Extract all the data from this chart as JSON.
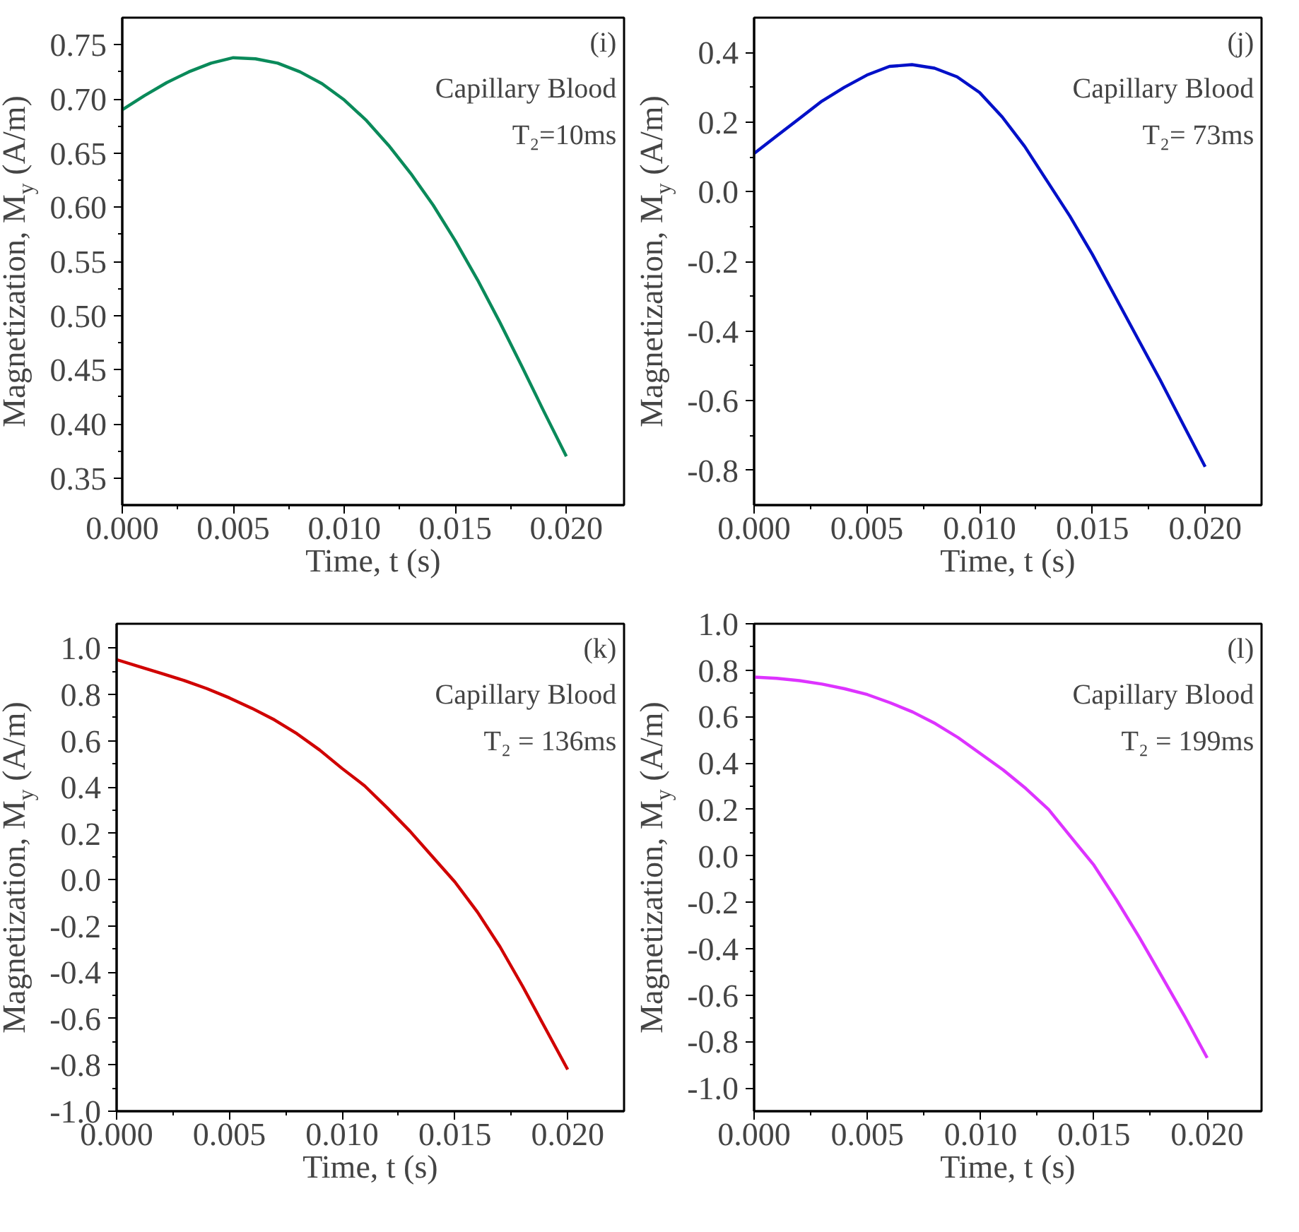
{
  "chart_data": [
    {
      "type": "line",
      "xlabel": "Time, t (s)",
      "ylabel": "Magnetization, M$_{y}$ (A/m)",
      "annotations": [
        "(i)",
        "Capillary Blood",
        "T₂=10ms"
      ],
      "x": [
        0,
        0.001,
        0.002,
        0.003,
        0.004,
        0.005,
        0.006,
        0.007,
        0.008,
        0.009,
        0.01,
        0.011,
        0.012,
        0.013,
        0.014,
        0.015,
        0.016,
        0.017,
        0.018,
        0.019,
        0.02
      ],
      "series": [
        {
          "color": "#0a8a5a",
          "values": [
            0.69,
            0.703,
            0.715,
            0.725,
            0.733,
            0.738,
            0.737,
            0.733,
            0.725,
            0.714,
            0.699,
            0.68,
            0.657,
            0.631,
            0.602,
            0.569,
            0.533,
            0.494,
            0.453,
            0.411,
            0.37
          ]
        }
      ],
      "xlim": [
        0,
        0.0226
      ],
      "ylim": [
        0.325,
        0.775
      ],
      "xticks": [
        {
          "value": 0,
          "label": "0.000"
        },
        {
          "value": 0.005,
          "label": "0.005"
        },
        {
          "value": 0.01,
          "label": "0.010"
        },
        {
          "value": 0.015,
          "label": "0.015"
        },
        {
          "value": 0.02,
          "label": "0.020"
        }
      ],
      "yticks": [
        {
          "value": 0.35,
          "label": "0.35"
        },
        {
          "value": 0.4,
          "label": "0.40"
        },
        {
          "value": 0.45,
          "label": "0.45"
        },
        {
          "value": 0.5,
          "label": "0.50"
        },
        {
          "value": 0.55,
          "label": "0.55"
        },
        {
          "value": 0.6,
          "label": "0.60"
        },
        {
          "value": 0.65,
          "label": "0.65"
        },
        {
          "value": 0.7,
          "label": "0.70"
        },
        {
          "value": 0.75,
          "label": "0.75"
        }
      ],
      "marker": "none",
      "line_style": "solid",
      "grid": false
    },
    {
      "type": "line",
      "xlabel": "Time, t (s)",
      "ylabel": "Magnetization, M$_{y}$ (A/m)",
      "annotations": [
        "(j)",
        "Capillary Blood",
        "T₂= 73ms"
      ],
      "x": [
        0,
        0.001,
        0.002,
        0.003,
        0.004,
        0.005,
        0.006,
        0.007,
        0.008,
        0.009,
        0.01,
        0.011,
        0.012,
        0.013,
        0.014,
        0.015,
        0.016,
        0.017,
        0.018,
        0.019,
        0.02
      ],
      "series": [
        {
          "color": "#0010c8",
          "values": [
            0.11,
            0.16,
            0.21,
            0.26,
            0.3,
            0.335,
            0.36,
            0.365,
            0.355,
            0.33,
            0.285,
            0.215,
            0.13,
            0.03,
            -0.07,
            -0.18,
            -0.3,
            -0.42,
            -0.54,
            -0.665,
            -0.79
          ]
        }
      ],
      "xlim": [
        0,
        0.0225
      ],
      "ylim": [
        -0.9,
        0.5
      ],
      "xticks": [
        {
          "value": 0,
          "label": "0.000"
        },
        {
          "value": 0.005,
          "label": "0.005"
        },
        {
          "value": 0.01,
          "label": "0.010"
        },
        {
          "value": 0.015,
          "label": "0.015"
        },
        {
          "value": 0.02,
          "label": "0.020"
        }
      ],
      "yticks": [
        {
          "value": -0.8,
          "label": "-0.8"
        },
        {
          "value": -0.6,
          "label": "-0.6"
        },
        {
          "value": -0.4,
          "label": "-0.4"
        },
        {
          "value": -0.2,
          "label": "-0.2"
        },
        {
          "value": 0,
          "label": "0.0"
        },
        {
          "value": 0.2,
          "label": "0.2"
        },
        {
          "value": 0.4,
          "label": "0.4"
        }
      ],
      "marker": "none",
      "line_style": "solid",
      "grid": false
    },
    {
      "type": "line",
      "xlabel": "Time, t (s)",
      "ylabel": "Magnetization, M$_{y}$ (A/m)",
      "annotations": [
        "(k)",
        "Capillary Blood",
        "T₂ = 136ms"
      ],
      "x": [
        0,
        0.001,
        0.002,
        0.003,
        0.004,
        0.005,
        0.006,
        0.007,
        0.008,
        0.009,
        0.01,
        0.011,
        0.012,
        0.013,
        0.014,
        0.015,
        0.016,
        0.017,
        0.018,
        0.019,
        0.02
      ],
      "series": [
        {
          "color": "#d00000",
          "values": [
            0.95,
            0.92,
            0.89,
            0.86,
            0.825,
            0.785,
            0.74,
            0.69,
            0.63,
            0.56,
            0.48,
            0.405,
            0.31,
            0.21,
            0.1,
            -0.01,
            -0.14,
            -0.29,
            -0.46,
            -0.64,
            -0.82
          ]
        }
      ],
      "xlim": [
        0,
        0.0225
      ],
      "ylim": [
        -1.0,
        1.105
      ],
      "xticks": [
        {
          "value": 0,
          "label": "0.000"
        },
        {
          "value": 0.005,
          "label": "0.005"
        },
        {
          "value": 0.01,
          "label": "0.010"
        },
        {
          "value": 0.015,
          "label": "0.015"
        },
        {
          "value": 0.02,
          "label": "0.020"
        }
      ],
      "yticks": [
        {
          "value": -1,
          "label": "-1.0"
        },
        {
          "value": -0.8,
          "label": "-0.8"
        },
        {
          "value": -0.6,
          "label": "-0.6"
        },
        {
          "value": -0.4,
          "label": "-0.4"
        },
        {
          "value": -0.2,
          "label": "-0.2"
        },
        {
          "value": 0,
          "label": "0.0"
        },
        {
          "value": 0.2,
          "label": "0.2"
        },
        {
          "value": 0.4,
          "label": "0.4"
        },
        {
          "value": 0.6,
          "label": "0.6"
        },
        {
          "value": 0.8,
          "label": "0.8"
        },
        {
          "value": 1,
          "label": "1.0"
        }
      ],
      "marker": "none",
      "line_style": "solid",
      "grid": false
    },
    {
      "type": "line",
      "xlabel": "Time, t (s)",
      "ylabel": "Magnetization, M$_{y}$ (A/m)",
      "annotations": [
        "(l)",
        "Capillary Blood",
        "T₂ = 199ms"
      ],
      "x": [
        0,
        0.001,
        0.002,
        0.003,
        0.004,
        0.005,
        0.006,
        0.007,
        0.008,
        0.009,
        0.01,
        0.011,
        0.012,
        0.013,
        0.014,
        0.015,
        0.016,
        0.017,
        0.018,
        0.019,
        0.02
      ],
      "series": [
        {
          "color": "#dd33ff",
          "values": [
            0.77,
            0.765,
            0.755,
            0.74,
            0.72,
            0.695,
            0.66,
            0.62,
            0.57,
            0.51,
            0.44,
            0.37,
            0.29,
            0.2,
            0.08,
            -0.04,
            -0.19,
            -0.35,
            -0.52,
            -0.69,
            -0.87
          ]
        }
      ],
      "xlim": [
        0,
        0.0224
      ],
      "ylim": [
        -1.1,
        1.0
      ],
      "xticks": [
        {
          "value": 0,
          "label": "0.000"
        },
        {
          "value": 0.005,
          "label": "0.005"
        },
        {
          "value": 0.01,
          "label": "0.010"
        },
        {
          "value": 0.015,
          "label": "0.015"
        },
        {
          "value": 0.02,
          "label": "0.020"
        }
      ],
      "yticks": [
        {
          "value": -1,
          "label": "-1.0"
        },
        {
          "value": -0.8,
          "label": "-0.8"
        },
        {
          "value": -0.6,
          "label": "-0.6"
        },
        {
          "value": -0.4,
          "label": "-0.4"
        },
        {
          "value": -0.2,
          "label": "-0.2"
        },
        {
          "value": 0,
          "label": "0.0"
        },
        {
          "value": 0.2,
          "label": "0.2"
        },
        {
          "value": 0.4,
          "label": "0.4"
        },
        {
          "value": 0.6,
          "label": "0.6"
        },
        {
          "value": 0.8,
          "label": "0.8"
        },
        {
          "value": 1,
          "label": "1.0"
        }
      ],
      "marker": "none",
      "line_style": "solid",
      "grid": false
    }
  ]
}
